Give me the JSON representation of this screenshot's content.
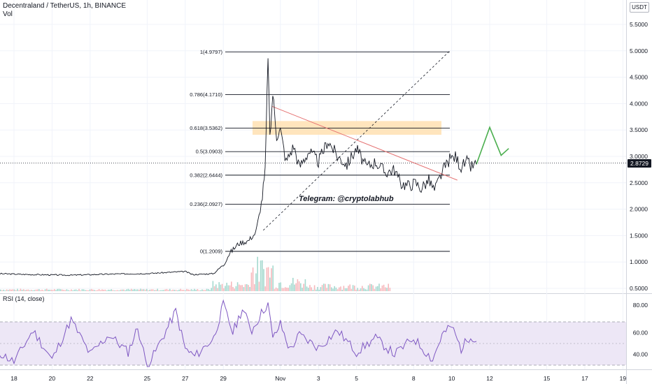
{
  "header": {
    "symbol_line": "Decentraland / TetherUS, 1h, BINANCE",
    "vol_label": "Vol",
    "currency": "USDT"
  },
  "current_price": "2.8729",
  "watermark": "Telegram: @cryptolabhub",
  "rsi_label": "RSI (14, close)",
  "chart_data": [
    {
      "type": "line",
      "title": "Decentraland / TetherUS, 1h, BINANCE",
      "x_ticks": [
        "18",
        "20",
        "22",
        "25",
        "27",
        "29",
        "Nov",
        "3",
        "5",
        "8",
        "10",
        "12",
        "15",
        "17",
        "19"
      ],
      "y_ticks": [
        "5.5000",
        "5.0000",
        "4.5000",
        "4.0000",
        "3.5000",
        "3.0000",
        "2.5000",
        "2.0000",
        "1.5000",
        "1.0000",
        "0.5000"
      ],
      "ylim": [
        0.45,
        5.75
      ],
      "current_price": 2.8729,
      "fib_levels": [
        {
          "label": "1(4.9797)",
          "value": 4.9797
        },
        {
          "label": "0.786(4.1710)",
          "value": 4.171
        },
        {
          "label": "0.618(3.5362)",
          "value": 3.5362
        },
        {
          "label": "0.5(3.0903)",
          "value": 3.0903
        },
        {
          "label": "0.382(2.6444)",
          "value": 2.6444
        },
        {
          "label": "0.236(2.0927)",
          "value": 2.0927
        },
        {
          "label": "0(1.2009)",
          "value": 1.2009
        }
      ],
      "resistance_zone": [
        3.41,
        3.67
      ],
      "price_path_approx": [
        {
          "day": 17.0,
          "price": 0.78
        },
        {
          "day": 19.0,
          "price": 0.76
        },
        {
          "day": 21.0,
          "price": 0.75
        },
        {
          "day": 23.0,
          "price": 0.77
        },
        {
          "day": 25.0,
          "price": 0.78
        },
        {
          "day": 27.0,
          "price": 0.82
        },
        {
          "day": 27.4,
          "price": 0.76
        },
        {
          "day": 28.5,
          "price": 0.78
        },
        {
          "day": 29.0,
          "price": 0.95
        },
        {
          "day": 29.3,
          "price": 1.15
        },
        {
          "day": 29.8,
          "price": 1.35
        },
        {
          "day": 30.3,
          "price": 1.4
        },
        {
          "day": 30.7,
          "price": 1.55
        },
        {
          "day": 31.0,
          "price": 2.1
        },
        {
          "day": 31.2,
          "price": 2.7
        },
        {
          "day": 31.35,
          "price": 4.95
        },
        {
          "day": 31.45,
          "price": 3.3
        },
        {
          "day": 31.6,
          "price": 4.2
        },
        {
          "day": 31.8,
          "price": 3.4
        },
        {
          "day": 32.0,
          "price": 3.5
        },
        {
          "day": 32.3,
          "price": 2.9
        },
        {
          "day": 32.7,
          "price": 3.2
        },
        {
          "day": 33.0,
          "price": 2.8
        },
        {
          "day": 33.5,
          "price": 3.1
        },
        {
          "day": 34.0,
          "price": 2.9
        },
        {
          "day": 34.5,
          "price": 3.3
        },
        {
          "day": 35.0,
          "price": 3.0
        },
        {
          "day": 35.5,
          "price": 2.85
        },
        {
          "day": 36.0,
          "price": 3.15
        },
        {
          "day": 36.5,
          "price": 2.8
        },
        {
          "day": 37.0,
          "price": 2.9
        },
        {
          "day": 37.5,
          "price": 2.7
        },
        {
          "day": 38.0,
          "price": 2.75
        },
        {
          "day": 38.3,
          "price": 2.5
        },
        {
          "day": 38.7,
          "price": 2.45
        },
        {
          "day": 39.1,
          "price": 2.5
        },
        {
          "day": 39.4,
          "price": 2.4
        },
        {
          "day": 39.8,
          "price": 2.55
        },
        {
          "day": 40.1,
          "price": 2.35
        },
        {
          "day": 40.5,
          "price": 2.7
        },
        {
          "day": 40.9,
          "price": 2.95
        },
        {
          "day": 41.2,
          "price": 3.0
        },
        {
          "day": 41.5,
          "price": 2.8
        },
        {
          "day": 41.8,
          "price": 2.9
        },
        {
          "day": 42.0,
          "price": 2.8
        },
        {
          "day": 42.3,
          "price": 2.85
        }
      ],
      "projection": [
        {
          "day": 42.3,
          "price": 2.85
        },
        {
          "day": 43.0,
          "price": 3.55
        },
        {
          "day": 43.6,
          "price": 3.02
        },
        {
          "day": 44.0,
          "price": 3.15
        }
      ],
      "trendline_descending": [
        {
          "day": 31.55,
          "price": 3.95
        },
        {
          "day": 41.3,
          "price": 2.55
        }
      ],
      "trendline_ascending": [
        {
          "day": 31.1,
          "price": 1.6
        },
        {
          "day": 47.0,
          "price": 5.0
        }
      ]
    },
    {
      "type": "line",
      "title": "RSI (14, close)",
      "y_ticks": [
        "80.00",
        "60.00",
        "40.00"
      ],
      "ylim": [
        24,
        91
      ],
      "bands": [
        70,
        30
      ],
      "midline": 50,
      "rsi_path_approx": [
        {
          "day": 17.0,
          "price": 44
        },
        {
          "day": 18.0,
          "price": 33
        },
        {
          "day": 19.0,
          "price": 62
        },
        {
          "day": 20.0,
          "price": 35
        },
        {
          "day": 21.0,
          "price": 72
        },
        {
          "day": 22.0,
          "price": 40
        },
        {
          "day": 23.0,
          "price": 58
        },
        {
          "day": 24.0,
          "price": 42
        },
        {
          "day": 24.5,
          "price": 65
        },
        {
          "day": 25.0,
          "price": 28
        },
        {
          "day": 26.0,
          "price": 62
        },
        {
          "day": 26.5,
          "price": 80
        },
        {
          "day": 27.0,
          "price": 45
        },
        {
          "day": 27.5,
          "price": 38
        },
        {
          "day": 28.5,
          "price": 55
        },
        {
          "day": 29.0,
          "price": 86
        },
        {
          "day": 29.5,
          "price": 60
        },
        {
          "day": 30.0,
          "price": 82
        },
        {
          "day": 30.5,
          "price": 62
        },
        {
          "day": 31.0,
          "price": 78
        },
        {
          "day": 31.35,
          "price": 87
        },
        {
          "day": 31.6,
          "price": 54
        },
        {
          "day": 32.0,
          "price": 68
        },
        {
          "day": 32.5,
          "price": 44
        },
        {
          "day": 33.0,
          "price": 58
        },
        {
          "day": 34.0,
          "price": 46
        },
        {
          "day": 35.0,
          "price": 62
        },
        {
          "day": 36.0,
          "price": 42
        },
        {
          "day": 37.0,
          "price": 55
        },
        {
          "day": 38.0,
          "price": 40
        },
        {
          "day": 39.0,
          "price": 55
        },
        {
          "day": 40.0,
          "price": 35
        },
        {
          "day": 40.5,
          "price": 58
        },
        {
          "day": 41.0,
          "price": 66
        },
        {
          "day": 41.5,
          "price": 45
        },
        {
          "day": 42.0,
          "price": 58
        },
        {
          "day": 42.3,
          "price": 52
        }
      ]
    }
  ],
  "colors": {
    "price_line": "#131722",
    "volume_up": "#a5d9cf",
    "volume_down": "#f7b8bc",
    "rsi_line": "#7e57c2",
    "rsi_band": "#ede7f6",
    "fib_line": "#131722",
    "zone_fill": "#ffe0b2",
    "desc_trend": "#e57373",
    "projection": "#4caf50"
  }
}
